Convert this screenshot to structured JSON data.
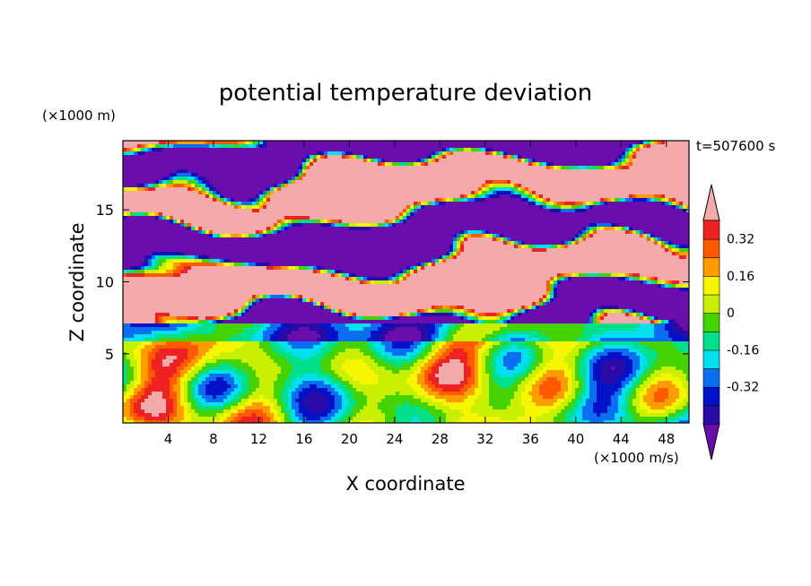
{
  "chart_data": {
    "type": "heatmap",
    "title": "potential temperature deviation",
    "xlabel": "X coordinate",
    "ylabel": "Z coordinate",
    "x_unit": "(×1000 m/s)",
    "y_unit": "(×1000 m)",
    "time_label": "t=507600 s",
    "xlim": [
      0,
      50
    ],
    "ylim": [
      0.2,
      19.8
    ],
    "x_ticks": [
      4,
      8,
      12,
      16,
      20,
      24,
      28,
      32,
      36,
      40,
      44,
      48
    ],
    "y_ticks": [
      5,
      10,
      15
    ],
    "colorbar": {
      "levels": [
        -0.48,
        -0.4,
        -0.32,
        -0.24,
        -0.16,
        -0.08,
        0,
        0.08,
        0.16,
        0.24,
        0.32,
        0.4,
        0.48
      ],
      "labels": [
        "-0.32",
        "-0.16",
        "0",
        "0.16",
        "0.32"
      ],
      "label_values": [
        -0.32,
        -0.16,
        0,
        0.16,
        0.32
      ],
      "colors": [
        "#6a0dad",
        "#2b0ba8",
        "#0012c8",
        "#0a6ef0",
        "#00e0f0",
        "#00e08a",
        "#44d200",
        "#c8f000",
        "#f6f600",
        "#ff9c00",
        "#ff5a00",
        "#ee2222",
        "#f4aaaa"
      ],
      "extend": "both"
    },
    "field_description": "stratified layer z>7: alternating purple (<-0.48) and pink (>0.48) lobes with thin rainbow transition bands; z<7: turbulent field around 0 (cyan/green/yellow) with blue and red plumes"
  }
}
